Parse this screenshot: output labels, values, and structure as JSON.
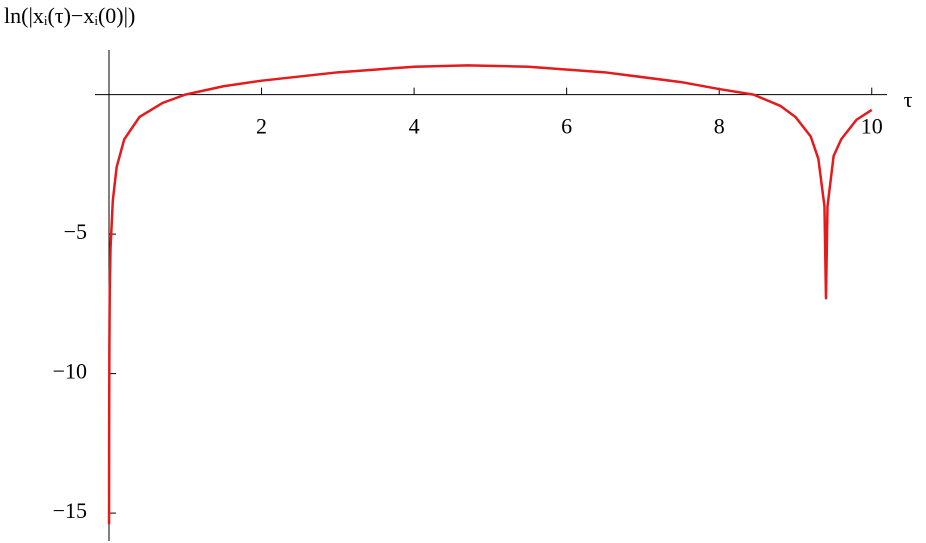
{
  "chart_data": {
    "type": "line",
    "y_label": "ln(|xᵢ(τ)−xᵢ(0)|)",
    "x_label": "τ",
    "x": [
      0.0005,
      0.002,
      0.005,
      0.01,
      0.02,
      0.05,
      0.1,
      0.2,
      0.4,
      0.7,
      1.0,
      1.5,
      2,
      3,
      4,
      4.7,
      5.5,
      6.5,
      7.5,
      8,
      8.45,
      8.8,
      9.0,
      9.2,
      9.3,
      9.38,
      9.4,
      9.42,
      9.5,
      9.6,
      9.8,
      10.0
    ],
    "series": [
      {
        "color": "#e41a1c",
        "values": [
          -15.4,
          -12,
          -9,
          -7,
          -5.5,
          -3.8,
          -2.6,
          -1.6,
          -0.8,
          -0.3,
          0.0,
          0.3,
          0.5,
          0.8,
          1.0,
          1.05,
          1.0,
          0.8,
          0.45,
          0.2,
          0.0,
          -0.4,
          -0.8,
          -1.5,
          -2.3,
          -4,
          -7.3,
          -4,
          -2.2,
          -1.6,
          -0.9,
          -0.55
        ]
      }
    ],
    "xlim": [
      0,
      10.2
    ],
    "ylim": [
      -16,
      1.6
    ],
    "xticks": [
      2,
      4,
      6,
      8,
      10
    ],
    "yticks": [
      {
        "value": -5,
        "label": "−5"
      },
      {
        "value": -10,
        "label": "−10"
      },
      {
        "value": -15,
        "label": "−15"
      }
    ]
  }
}
